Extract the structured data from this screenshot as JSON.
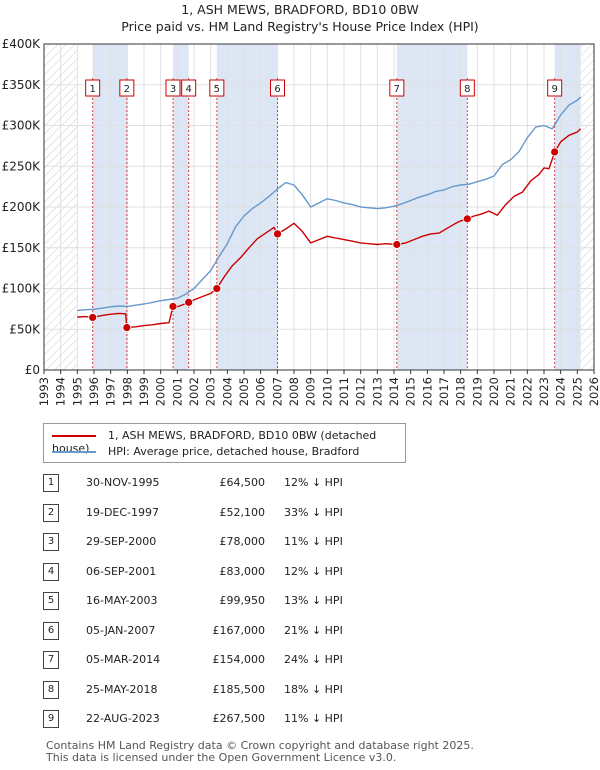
{
  "title": "1, ASH MEWS, BRADFORD, BD10 0BW",
  "subtitle": "Price paid vs. HM Land Registry's House Price Index (HPI)",
  "colors": {
    "price": "#cc0000",
    "hpi": "#6699cc",
    "band": "#dde6f4",
    "grid": "#e0e0e0"
  },
  "legend": {
    "price_label": "1, ASH MEWS, BRADFORD, BD10 0BW (detached house)",
    "hpi_label": "HPI: Average price, detached house, Bradford"
  },
  "chart_data": {
    "type": "line",
    "title": "Price paid vs. HM Land Registry's House Price Index (HPI)",
    "ylim": [
      0,
      400000
    ],
    "xlim": [
      1993,
      2026
    ],
    "yticks": [
      0,
      50000,
      100000,
      150000,
      200000,
      250000,
      300000,
      350000,
      400000
    ],
    "ytick_labels": [
      "£0",
      "£50K",
      "£100K",
      "£150K",
      "£200K",
      "£250K",
      "£300K",
      "£350K",
      "£400K"
    ],
    "xticks": [
      1993,
      1994,
      1995,
      1996,
      1997,
      1998,
      1999,
      2000,
      2001,
      2002,
      2003,
      2004,
      2005,
      2006,
      2007,
      2008,
      2009,
      2010,
      2011,
      2012,
      2013,
      2014,
      2015,
      2016,
      2017,
      2018,
      2019,
      2020,
      2021,
      2022,
      2023,
      2024,
      2025,
      2026
    ],
    "xtick_labels": [
      "1993",
      "1994",
      "1995",
      "1996",
      "1997",
      "1998",
      "1999",
      "2000",
      "2001",
      "2002",
      "2003",
      "2004",
      "2005",
      "2006",
      "2007",
      "2008",
      "2009",
      "2010",
      "2011",
      "2012",
      "2013",
      "2014",
      "2015",
      "2016",
      "2017",
      "2018",
      "2019",
      "2020",
      "2021",
      "2022",
      "2023",
      "2024",
      "2025",
      "2026"
    ],
    "hatched_ranges": [
      [
        1993,
        1995
      ],
      [
        2025.2,
        2026
      ]
    ],
    "series": [
      {
        "name": "HPI: Average price, detached house, Bradford",
        "x": [
          1995.0,
          1995.5,
          1996.0,
          1996.5,
          1997.0,
          1997.5,
          1998.0,
          1998.5,
          1999.0,
          1999.5,
          2000.0,
          2000.5,
          2001.0,
          2001.5,
          2002.0,
          2002.5,
          2003.0,
          2003.5,
          2004.0,
          2004.5,
          2005.0,
          2005.5,
          2006.0,
          2006.5,
          2007.0,
          2007.5,
          2008.0,
          2008.5,
          2009.0,
          2009.5,
          2010.0,
          2010.5,
          2011.0,
          2011.5,
          2012.0,
          2012.5,
          2013.0,
          2013.5,
          2014.0,
          2014.5,
          2015.0,
          2015.5,
          2016.0,
          2016.5,
          2017.0,
          2017.5,
          2018.0,
          2018.5,
          2019.0,
          2019.5,
          2020.0,
          2020.5,
          2021.0,
          2021.5,
          2022.0,
          2022.5,
          2023.0,
          2023.5,
          2024.0,
          2024.5,
          2025.0,
          2025.2
        ],
        "values": [
          73000,
          74000,
          74500,
          76000,
          77500,
          78500,
          78000,
          79500,
          81000,
          83000,
          85000,
          86500,
          88000,
          93000,
          100000,
          111000,
          122000,
          139000,
          155000,
          176000,
          189000,
          198000,
          205000,
          213000,
          222000,
          230000,
          227000,
          215000,
          200000,
          205000,
          210000,
          208000,
          205000,
          203000,
          200000,
          199000,
          198000,
          199000,
          201000,
          204000,
          208000,
          212000,
          215000,
          219000,
          221000,
          225000,
          227000,
          228000,
          231000,
          234000,
          238000,
          252000,
          258000,
          268000,
          285000,
          298000,
          300000,
          296000,
          313000,
          325000,
          331000,
          335000
        ]
      },
      {
        "name": "1, ASH MEWS, BRADFORD, BD10 0BW (detached house)",
        "x": [
          1995.0,
          1995.5,
          1995.92,
          1996.5,
          1997.0,
          1997.5,
          1997.9,
          1997.97,
          1998.5,
          1999.0,
          1999.5,
          2000.0,
          2000.5,
          2000.74,
          2001.0,
          2001.5,
          2001.68,
          2002.0,
          2002.5,
          2003.0,
          2003.37,
          2003.8,
          2004.3,
          2004.8,
          2005.3,
          2005.8,
          2006.3,
          2006.8,
          2007.01,
          2007.5,
          2008.0,
          2008.5,
          2009.0,
          2009.5,
          2010.0,
          2010.5,
          2011.0,
          2011.5,
          2012.0,
          2012.5,
          2013.0,
          2013.5,
          2014.17,
          2014.7,
          2015.2,
          2015.7,
          2016.2,
          2016.7,
          2017.2,
          2017.7,
          2018.0,
          2018.4,
          2018.8,
          2019.2,
          2019.7,
          2020.2,
          2020.7,
          2021.2,
          2021.7,
          2022.2,
          2022.7,
          2023.0,
          2023.3,
          2023.64,
          2024.0,
          2024.5,
          2025.0,
          2025.2
        ],
        "values": [
          65000,
          65500,
          64500,
          67000,
          68500,
          69500,
          69000,
          52100,
          53000,
          54500,
          55500,
          57000,
          58000,
          78000,
          77500,
          81500,
          83000,
          86000,
          90000,
          94000,
          99950,
          114000,
          128000,
          138000,
          150000,
          161000,
          168000,
          175000,
          167000,
          173000,
          180000,
          170000,
          156000,
          160000,
          164000,
          162000,
          160000,
          158000,
          156000,
          155000,
          154000,
          155000,
          154000,
          156000,
          160000,
          164000,
          167000,
          168000,
          174000,
          180000,
          183000,
          185500,
          189000,
          191000,
          195000,
          190000,
          203000,
          213000,
          218000,
          232000,
          240000,
          248000,
          247000,
          267500,
          280000,
          288000,
          292000,
          296000
        ]
      }
    ],
    "sales": [
      {
        "n": "1",
        "x": 1995.92,
        "price": 64500
      },
      {
        "n": "2",
        "x": 1997.97,
        "price": 52100
      },
      {
        "n": "3",
        "x": 2000.74,
        "price": 78000
      },
      {
        "n": "4",
        "x": 2001.68,
        "price": 83000
      },
      {
        "n": "5",
        "x": 2003.37,
        "price": 99950
      },
      {
        "n": "6",
        "x": 2007.01,
        "price": 167000
      },
      {
        "n": "7",
        "x": 2014.17,
        "price": 154000
      },
      {
        "n": "8",
        "x": 2018.4,
        "price": 185500
      },
      {
        "n": "9",
        "x": 2023.64,
        "price": 267500
      }
    ]
  },
  "table": [
    {
      "n": "1",
      "date": "30-NOV-1995",
      "price": "£64,500",
      "hpi": "12% ↓ HPI"
    },
    {
      "n": "2",
      "date": "19-DEC-1997",
      "price": "£52,100",
      "hpi": "33% ↓ HPI"
    },
    {
      "n": "3",
      "date": "29-SEP-2000",
      "price": "£78,000",
      "hpi": "11% ↓ HPI"
    },
    {
      "n": "4",
      "date": "06-SEP-2001",
      "price": "£83,000",
      "hpi": "12% ↓ HPI"
    },
    {
      "n": "5",
      "date": "16-MAY-2003",
      "price": "£99,950",
      "hpi": "13% ↓ HPI"
    },
    {
      "n": "6",
      "date": "05-JAN-2007",
      "price": "£167,000",
      "hpi": "21% ↓ HPI"
    },
    {
      "n": "7",
      "date": "05-MAR-2014",
      "price": "£154,000",
      "hpi": "24% ↓ HPI"
    },
    {
      "n": "8",
      "date": "25-MAY-2018",
      "price": "£185,500",
      "hpi": "18% ↓ HPI"
    },
    {
      "n": "9",
      "date": "22-AUG-2023",
      "price": "£267,500",
      "hpi": "11% ↓ HPI"
    }
  ],
  "footer": {
    "line1": "Contains HM Land Registry data © Crown copyright and database right 2025.",
    "line2": "This data is licensed under the Open Government Licence v3.0."
  }
}
